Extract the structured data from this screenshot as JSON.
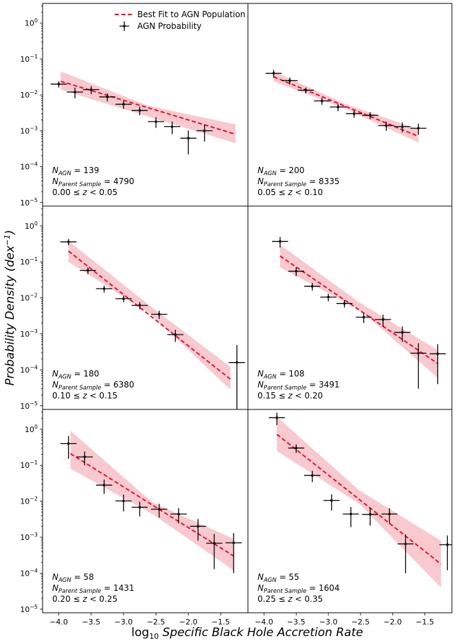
{
  "chart_data": {
    "type": "scatter",
    "xlabel_prefix": "log",
    "xlabel_sub": "10",
    "xlabel_main": "Specific Black Hole Accretion Rate",
    "ylabel_main": "Probability Density (dex",
    "ylabel_sup": "−1",
    "ylabel_close": ")",
    "xlim": [
      -4.25,
      -1.08
    ],
    "ylim_log10": [
      -5.1,
      0.55
    ],
    "xticks": [
      -4.0,
      -3.5,
      -3.0,
      -2.5,
      -2.0,
      -1.5
    ],
    "xtick_labels": [
      "−4.0",
      "−3.5",
      "−3.0",
      "−2.5",
      "−2.0",
      "−1.5"
    ],
    "yticks_exp": [
      0,
      -1,
      -2,
      -3,
      -4,
      -5
    ],
    "ytick_base": "10",
    "ytick_exps": [
      "0",
      "−1",
      "−2",
      "−3",
      "−4",
      "−5"
    ],
    "legend": {
      "fit": "Best Fit to AGN Population",
      "points": "AGN Probability",
      "position": "upper-center"
    },
    "colors": {
      "fit": "#e8112d",
      "band": "#f7c0c6",
      "points": "#000000"
    },
    "n_agn_label": "N",
    "n_agn_sub": "AGN",
    "n_parent_label": "N",
    "n_parent_sub": "Parent Sample",
    "z_symbol": "z",
    "panels": [
      {
        "n_agn": "139",
        "n_parent": "4790",
        "z_lo": "0.00",
        "z_hi": "0.05",
        "points": [
          [
            -4.0,
            0.02,
            0.004
          ],
          [
            -3.75,
            0.012,
            0.004
          ],
          [
            -3.5,
            0.014,
            0.0035
          ],
          [
            -3.25,
            0.0088,
            0.0022
          ],
          [
            -3.0,
            0.0055,
            0.0014
          ],
          [
            -2.75,
            0.0037,
            0.001
          ],
          [
            -2.5,
            0.0018,
            0.0006
          ],
          [
            -2.25,
            0.0013,
            0.0005
          ],
          [
            -2.0,
            0.00062,
            0.0004
          ],
          [
            -1.75,
            0.001,
            0.0005
          ]
        ],
        "fit": [
          [
            -3.97,
            0.024
          ],
          [
            -1.27,
            0.0008
          ]
        ],
        "band": [
          [
            -3.97,
            0.014,
            0.045
          ],
          [
            -2.62,
            0.0025,
            0.005
          ],
          [
            -1.27,
            0.00045,
            0.0015
          ]
        ]
      },
      {
        "n_agn": "200",
        "n_parent": "8335",
        "z_lo": "0.05",
        "z_hi": "0.10",
        "points": [
          [
            -3.85,
            0.04,
            0.01
          ],
          [
            -3.6,
            0.025,
            0.0055
          ],
          [
            -3.35,
            0.0135,
            0.0025
          ],
          [
            -3.1,
            0.0068,
            0.0015
          ],
          [
            -2.85,
            0.0046,
            0.0011
          ],
          [
            -2.6,
            0.003,
            0.0007
          ],
          [
            -2.35,
            0.0027,
            0.0006
          ],
          [
            -2.1,
            0.0014,
            0.0004
          ],
          [
            -1.85,
            0.0013,
            0.0004
          ],
          [
            -1.6,
            0.00118,
            0.0004
          ]
        ],
        "fit": [
          [
            -3.85,
            0.032
          ],
          [
            -1.6,
            0.0007
          ]
        ],
        "band": [
          [
            -3.85,
            0.024,
            0.045
          ],
          [
            -2.72,
            0.004,
            0.0055
          ],
          [
            -1.6,
            0.00047,
            0.0011
          ]
        ]
      },
      {
        "n_agn": "180",
        "n_parent": "6380",
        "z_lo": "0.10",
        "z_hi": "0.15",
        "points": [
          [
            -3.85,
            0.36,
            0.07
          ],
          [
            -3.55,
            0.058,
            0.012
          ],
          [
            -3.3,
            0.018,
            0.004
          ],
          [
            -3.0,
            0.0095,
            0.002
          ],
          [
            -2.75,
            0.0062,
            0.0014
          ],
          [
            -2.45,
            0.0035,
            0.0009
          ],
          [
            -2.2,
            0.00095,
            0.00035
          ],
          [
            -1.25,
            0.00016,
            0.00033
          ]
        ],
        "fit": [
          [
            -3.85,
            0.2
          ],
          [
            -1.35,
            5.5e-05
          ]
        ],
        "band": [
          [
            -3.85,
            0.1,
            0.38
          ],
          [
            -2.6,
            0.0038,
            0.0062
          ],
          [
            -1.35,
            2.8e-05,
            0.00012
          ]
        ]
      },
      {
        "n_agn": "108",
        "n_parent": "3491",
        "z_lo": "0.15",
        "z_hi": "0.20",
        "points": [
          [
            -3.75,
            0.37,
            0.12
          ],
          [
            -3.5,
            0.055,
            0.015
          ],
          [
            -3.25,
            0.021,
            0.005
          ],
          [
            -3.0,
            0.0105,
            0.0025
          ],
          [
            -2.75,
            0.007,
            0.0016
          ],
          [
            -2.45,
            0.0029,
            0.0009
          ],
          [
            -2.15,
            0.0025,
            0.0009
          ],
          [
            -1.85,
            0.0011,
            0.0005
          ],
          [
            -1.6,
            0.00029,
            0.00026
          ],
          [
            -1.3,
            0.00028,
            0.00024
          ]
        ],
        "fit": [
          [
            -3.75,
            0.145
          ],
          [
            -1.3,
            0.00015
          ]
        ],
        "band": [
          [
            -3.75,
            0.07,
            0.3
          ],
          [
            -2.52,
            0.0048,
            0.0075
          ],
          [
            -1.3,
            6e-05,
            0.00035
          ]
        ]
      },
      {
        "n_agn": "58",
        "n_parent": "1431",
        "z_lo": "0.20",
        "z_hi": "0.25",
        "points": [
          [
            -3.85,
            0.4,
            0.25
          ],
          [
            -3.6,
            0.17,
            0.07
          ],
          [
            -3.3,
            0.028,
            0.012
          ],
          [
            -3.0,
            0.0102,
            0.005
          ],
          [
            -2.75,
            0.0068,
            0.003
          ],
          [
            -2.45,
            0.006,
            0.0025
          ],
          [
            -2.15,
            0.0044,
            0.002
          ],
          [
            -1.85,
            0.002,
            0.0012
          ],
          [
            -1.6,
            0.00068,
            0.00055
          ],
          [
            -1.3,
            0.0007,
            0.0006
          ]
        ],
        "fit": [
          [
            -3.82,
            0.21
          ],
          [
            -1.3,
            0.0003
          ]
        ],
        "band": [
          [
            -3.82,
            0.08,
            0.9
          ],
          [
            -2.56,
            0.0045,
            0.0095
          ],
          [
            -1.3,
            0.00012,
            0.0009
          ]
        ]
      },
      {
        "n_agn": "55",
        "n_parent": "1604",
        "z_lo": "0.25",
        "z_hi": "0.35",
        "points": [
          [
            -3.8,
            2.1,
            0.8
          ],
          [
            -3.5,
            0.3,
            0.08
          ],
          [
            -3.25,
            0.052,
            0.018
          ],
          [
            -2.95,
            0.0105,
            0.005
          ],
          [
            -2.65,
            0.0044,
            0.0025
          ],
          [
            -2.35,
            0.0043,
            0.0022
          ],
          [
            -2.05,
            0.0044,
            0.002
          ],
          [
            -1.8,
            0.00065,
            0.00055
          ],
          [
            -1.15,
            0.00062,
            0.0005
          ]
        ],
        "fit": [
          [
            -3.8,
            0.72
          ],
          [
            -1.25,
            0.00018
          ]
        ],
        "band": [
          [
            -3.8,
            0.25,
            2.2
          ],
          [
            -2.52,
            0.0085,
            0.02
          ],
          [
            -1.25,
            4e-05,
            0.0008
          ]
        ]
      }
    ]
  }
}
